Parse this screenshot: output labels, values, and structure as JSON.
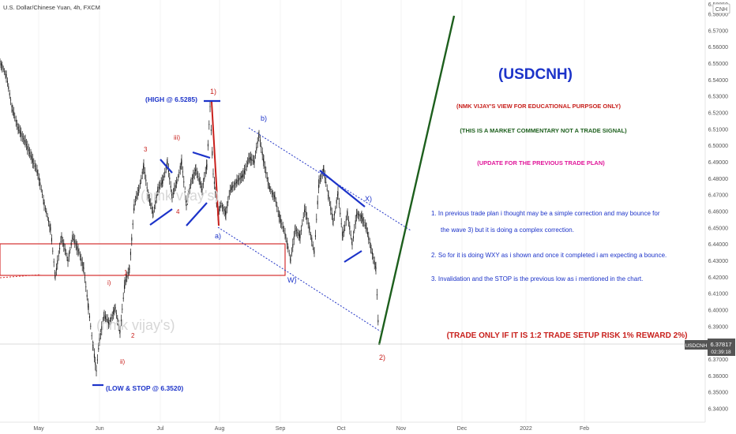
{
  "header": {
    "symbol_title": "U.S. Dollar/Chinese Yuan, 4h, FXCM",
    "currency_badge": "CNH"
  },
  "price_tag": {
    "symbol": "USDCNH",
    "price": "6.37817",
    "countdown": "02:39:18"
  },
  "chart_data": {
    "type": "line",
    "title": "U.S. Dollar/Chinese Yuan, 4h, FXCM",
    "ylim": [
      6.335,
      6.59
    ],
    "y_ticks": [
      "6.58000",
      "6.57000",
      "6.56000",
      "6.55000",
      "6.54000",
      "6.53000",
      "6.52000",
      "6.51000",
      "6.50000",
      "6.49000",
      "6.48000",
      "6.47000",
      "6.46000",
      "6.45000",
      "6.44000",
      "6.43000",
      "6.42000",
      "6.41000",
      "6.40000",
      "6.39000",
      "6.38000",
      "6.37000",
      "6.36000",
      "6.35000",
      "6.34000"
    ],
    "y_top_tick": "6.58850",
    "x_ticks": [
      "May",
      "Jun",
      "Jul",
      "Aug",
      "Sep",
      "Oct",
      "Nov",
      "Dec",
      "2022",
      "Feb"
    ],
    "series": [
      {
        "x": [
          0,
          2,
          4,
          6,
          8,
          10,
          12,
          14,
          16,
          18,
          20,
          22,
          24,
          26,
          28,
          30,
          32,
          34,
          36,
          38,
          40,
          42,
          44,
          46,
          48,
          50,
          52,
          54,
          56,
          58,
          60,
          62,
          64,
          66,
          68,
          70,
          72,
          74,
          76,
          78,
          80,
          82,
          84,
          86,
          88,
          90,
          92,
          94,
          96,
          98,
          100,
          102,
          104,
          106,
          108,
          110,
          112,
          114,
          116,
          118,
          120,
          122,
          124,
          126,
          128,
          130,
          132,
          134,
          136,
          138,
          140,
          142,
          144,
          146,
          148,
          150,
          152,
          154,
          156,
          158,
          160,
          162,
          164,
          166,
          168,
          170,
          172,
          174,
          176,
          178,
          180,
          182
        ],
        "y": [
          6.56,
          6.552,
          6.545,
          6.535,
          6.522,
          6.53,
          6.518,
          6.505,
          6.51,
          6.498,
          6.49,
          6.475,
          6.482,
          6.466,
          6.452,
          6.44,
          6.43,
          6.418,
          6.426,
          6.415,
          6.4,
          6.388,
          6.376,
          6.37,
          6.365,
          6.358,
          6.354,
          6.36,
          6.372,
          6.38,
          6.392,
          6.402,
          6.414,
          6.408,
          6.396,
          6.386,
          6.392,
          6.404,
          6.416,
          6.428,
          6.44,
          6.452,
          6.468,
          6.478,
          6.474,
          6.482,
          6.49,
          6.48,
          6.472,
          6.466,
          6.47,
          6.48,
          6.488,
          6.492,
          6.484,
          6.476,
          6.468,
          6.478,
          6.486,
          6.49,
          6.498,
          6.528,
          6.49,
          6.47,
          6.46,
          6.456,
          6.464,
          6.472,
          6.478,
          6.486,
          6.494,
          6.502,
          6.508,
          6.5,
          6.488,
          6.478,
          6.468,
          6.456,
          6.446,
          6.436,
          6.428,
          6.43,
          6.436,
          6.442,
          6.446,
          6.438,
          6.428,
          6.42,
          6.416,
          6.42,
          6.426,
          6.432
        ]
      }
    ],
    "price_points": [
      {
        "date": "Aug 1",
        "px": 476,
        "price": 6.5285
      },
      {
        "date": "Sep 1",
        "px": 523,
        "price": 6.512
      }
    ],
    "annotations": {
      "big_title": "(USDCNH)",
      "disclaimer": "(NMK VIJAY'S VIEW FOR EDUCATIONAL PURPSOE ONLY)",
      "commentary": "(THIS IS A MARKET COMMENTARY NOT A TRADE SIGNAL)",
      "update": "(UPDATE FOR THE PREVIOUS TRADE PLAN)",
      "note1_a": "1. In previous trade plan i thought may be a simple correction and may bounce for",
      "note1_b": "the wave 3) but it is doing a complex correction.",
      "note2": "2. So for it is doing WXY as i shown and once it completed i am expecting a bounce.",
      "note3": "3. Invalidation and the STOP is the previous low as i mentioned in the chart.",
      "trade_only": "(TRADE ONLY IF IT IS 1:2 TRADE SETUP RISK 1% REWARD 2%)",
      "high_label": "(HIGH @ 6.5285)",
      "low_label": "(LOW  & STOP @ 6.3520)",
      "watermark": "(nmk vijay's)"
    },
    "wave_labels": {
      "w1": "1)",
      "w2": "2)",
      "wa": "a)",
      "wb": "b)",
      "wW": "W)",
      "wX": "X)",
      "r1": "1",
      "r2": "2",
      "r3": "3",
      "r4": "4",
      "ri": "i)",
      "rii": "ii)",
      "riii": "iii)"
    },
    "colors": {
      "candle": "#000000",
      "blue": "#1c33c9",
      "red": "#c8201c",
      "green": "#1d5f1d",
      "pink": "#e0179a",
      "zone": "#d43030"
    }
  }
}
